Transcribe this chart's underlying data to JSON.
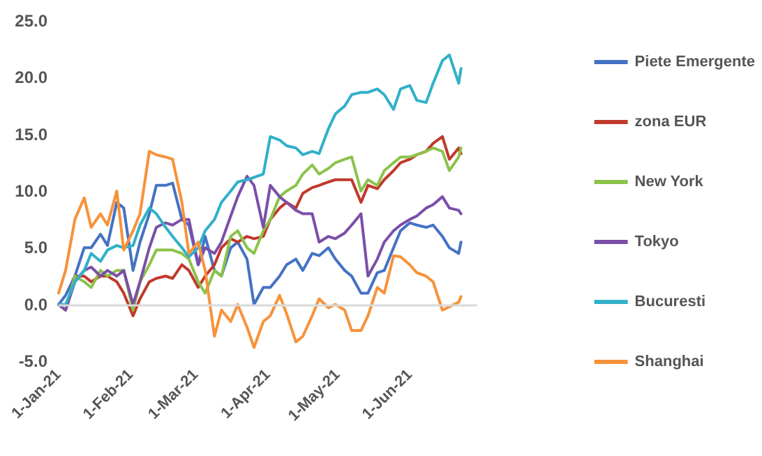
{
  "chart_data": {
    "type": "line",
    "x": [
      "2021-01-01",
      "2021-01-04",
      "2021-01-08",
      "2021-01-12",
      "2021-01-15",
      "2021-01-19",
      "2021-01-22",
      "2021-01-26",
      "2021-01-29",
      "2021-02-02",
      "2021-02-05",
      "2021-02-09",
      "2021-02-12",
      "2021-02-16",
      "2021-02-19",
      "2021-02-23",
      "2021-02-26",
      "2021-03-02",
      "2021-03-05",
      "2021-03-09",
      "2021-03-12",
      "2021-03-16",
      "2021-03-19",
      "2021-03-23",
      "2021-03-26",
      "2021-03-30",
      "2021-04-02",
      "2021-04-06",
      "2021-04-09",
      "2021-04-13",
      "2021-04-16",
      "2021-04-20",
      "2021-04-23",
      "2021-04-27",
      "2021-04-30",
      "2021-05-04",
      "2021-05-07",
      "2021-05-11",
      "2021-05-14",
      "2021-05-18",
      "2021-05-21",
      "2021-05-25",
      "2021-05-28",
      "2021-06-01",
      "2021-06-04",
      "2021-06-08",
      "2021-06-11",
      "2021-06-15",
      "2021-06-18",
      "2021-06-22",
      "2021-06-23"
    ],
    "series": [
      {
        "name": "Piete Emergente",
        "color": "#4472c4",
        "values": [
          0,
          0.8,
          2.5,
          5,
          5,
          6.2,
          5.2,
          9,
          8.5,
          3,
          5.5,
          8,
          10.5,
          10.5,
          10.7,
          7.5,
          7,
          3.5,
          6,
          3,
          2.5,
          5,
          5.5,
          4,
          0,
          1.5,
          1.5,
          2.5,
          3.5,
          4,
          3,
          4.5,
          4.3,
          5,
          4,
          3,
          2.5,
          1,
          1,
          2.8,
          3,
          5,
          6.5,
          7.2,
          7,
          6.8,
          7,
          6,
          5,
          4.5,
          5.5
        ]
      },
      {
        "name": "zona EUR",
        "color": "#c0392b",
        "values": [
          0,
          -0.5,
          2.5,
          2.5,
          2,
          2.5,
          2.5,
          2,
          1,
          -1,
          0.5,
          2,
          2.3,
          2.5,
          2.3,
          3.5,
          3,
          1.5,
          2.5,
          3.5,
          5,
          5.8,
          5.5,
          6,
          5.8,
          6,
          7.5,
          8.5,
          9,
          8.5,
          9.8,
          10.3,
          10.5,
          10.8,
          11,
          11,
          11,
          9,
          10.5,
          10.2,
          11,
          11.8,
          12.5,
          12.8,
          13.2,
          13.5,
          14.2,
          14.8,
          12.8,
          13.8,
          13.3
        ]
      },
      {
        "name": "New York",
        "color": "#8bc34a",
        "values": [
          0,
          -0.5,
          2.5,
          2,
          1.5,
          3,
          2.5,
          3,
          3,
          -0.5,
          2,
          3.5,
          4.8,
          4.8,
          4.8,
          4.5,
          4,
          2,
          1,
          3,
          2.5,
          6,
          6.5,
          5,
          4.5,
          6.5,
          7.5,
          9.5,
          10,
          10.5,
          11.5,
          12.3,
          11.5,
          12,
          12.5,
          12.8,
          13,
          10,
          11,
          10.5,
          11.8,
          12.5,
          13,
          13,
          13.2,
          13.5,
          13.8,
          13.5,
          11.8,
          13,
          13.8
        ]
      },
      {
        "name": "Tokyo",
        "color": "#7b4fa8",
        "values": [
          0,
          -0.5,
          2,
          3,
          3.3,
          2.5,
          3,
          2.5,
          3,
          0,
          2,
          5,
          6.8,
          7.2,
          7,
          7.5,
          7.5,
          3.5,
          5,
          4.5,
          5.5,
          7.8,
          9.5,
          11.3,
          10.5,
          6.8,
          10.5,
          9.5,
          9,
          8.3,
          8,
          8,
          5.5,
          6,
          5.8,
          6.3,
          7,
          8,
          2.5,
          4,
          5.5,
          6.5,
          7,
          7.5,
          7.8,
          8.5,
          8.8,
          9.5,
          8.5,
          8.3,
          8
        ]
      },
      {
        "name": "Bucuresti",
        "color": "#31b0c9",
        "values": [
          0,
          0,
          2,
          3,
          4.5,
          3.8,
          4.8,
          5.2,
          5,
          5.2,
          7,
          8.5,
          8,
          6.8,
          6,
          5,
          4.2,
          5,
          6.5,
          7.5,
          9,
          10,
          10.8,
          11,
          11.2,
          11.5,
          14.8,
          14.5,
          14,
          13.8,
          13.2,
          13.5,
          13.3,
          15.5,
          16.8,
          17.5,
          18.5,
          18.7,
          18.7,
          19,
          18.5,
          17.2,
          19,
          19.3,
          18,
          17.8,
          19.5,
          21.5,
          22,
          19.5,
          20.8
        ]
      },
      {
        "name": "Shanghai",
        "color": "#f7923a",
        "values": [
          1,
          3,
          7.5,
          9.4,
          6.8,
          8,
          7,
          10,
          4.8,
          6.5,
          8,
          13.5,
          13.2,
          13,
          12.8,
          9,
          4.5,
          5.5,
          3,
          -2.8,
          -0.5,
          -1.5,
          0,
          -2,
          -3.8,
          -1.5,
          -1,
          0.8,
          -0.8,
          -3.3,
          -2.8,
          -1,
          0.5,
          -0.3,
          0,
          -0.5,
          -2.3,
          -2.3,
          -1,
          1.5,
          1,
          4.3,
          4.2,
          3.5,
          2.8,
          2.5,
          2,
          -0.5,
          -0.2,
          0.2,
          0.7
        ]
      }
    ],
    "xlim": [
      "2021-01-01",
      "2021-06-30"
    ],
    "xticks": [
      {
        "value": "2021-01-01",
        "label": "1-Jan-21"
      },
      {
        "value": "2021-02-01",
        "label": "1-Feb-21"
      },
      {
        "value": "2021-03-01",
        "label": "1-Mar-21"
      },
      {
        "value": "2021-04-01",
        "label": "1-Apr-21"
      },
      {
        "value": "2021-05-01",
        "label": "1-May-21"
      },
      {
        "value": "2021-06-01",
        "label": "1-Jun-21"
      }
    ],
    "ylim": [
      -5,
      25
    ],
    "yticks": [
      {
        "value": -5,
        "label": "-5.0"
      },
      {
        "value": 0,
        "label": "0.0"
      },
      {
        "value": 5,
        "label": "5.0"
      },
      {
        "value": 10,
        "label": "10.0"
      },
      {
        "value": 15,
        "label": "15.0"
      },
      {
        "value": 20,
        "label": "20.0"
      },
      {
        "value": 25,
        "label": "25.0"
      }
    ],
    "ref_lines": [
      {
        "axis": "y",
        "value": 0,
        "color": "#d9d9d9"
      }
    ],
    "grid": false,
    "legend": "right",
    "marker": "none",
    "line_style": "solid"
  }
}
